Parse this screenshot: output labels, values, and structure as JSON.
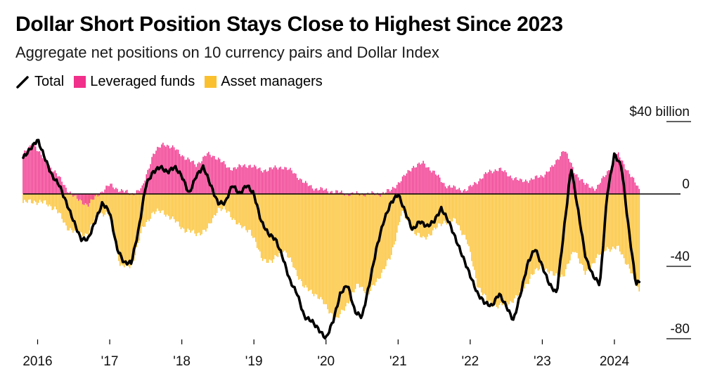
{
  "title": "Dollar Short Position Stays Close to Highest Since 2023",
  "subtitle": "Aggregate net positions on 10 currency pairs and Dollar Index",
  "legend": {
    "total": "Total",
    "leveraged": "Leveraged funds",
    "asset": "Asset managers"
  },
  "colors": {
    "total": "#000000",
    "leveraged": "#f0308a",
    "asset": "#fbc02d"
  },
  "chart_data": {
    "type": "bar",
    "title": "Dollar Short Position Stays Close to Highest Since 2023",
    "subtitle": "Aggregate net positions on 10 currency pairs and Dollar Index",
    "y_unit": "$ billion",
    "ylim": [
      -80,
      40
    ],
    "yticks": [
      {
        "value": 40,
        "label": "$40 billion"
      },
      {
        "value": 0,
        "label": "0"
      },
      {
        "value": -40,
        "label": "-40"
      },
      {
        "value": -80,
        "label": "-80"
      }
    ],
    "xlim": [
      2015.8,
      2024.4
    ],
    "xticks": [
      {
        "value": 2016,
        "label": "2016"
      },
      {
        "value": 2017,
        "label": "'17"
      },
      {
        "value": 2018,
        "label": "'18"
      },
      {
        "value": 2019,
        "label": "'19"
      },
      {
        "value": 2020,
        "label": "'20"
      },
      {
        "value": 2021,
        "label": "'21"
      },
      {
        "value": 2022,
        "label": "'22"
      },
      {
        "value": 2023,
        "label": "'23"
      },
      {
        "value": 2024,
        "label": "2024"
      }
    ],
    "series": [
      {
        "name": "Leveraged funds",
        "style": "stacked-bars",
        "x": [
          2015.8,
          2015.95,
          2016.1,
          2016.25,
          2016.4,
          2016.55,
          2016.7,
          2016.85,
          2017.0,
          2017.15,
          2017.3,
          2017.45,
          2017.6,
          2017.75,
          2017.9,
          2018.05,
          2018.2,
          2018.35,
          2018.5,
          2018.65,
          2018.8,
          2018.95,
          2019.1,
          2019.25,
          2019.4,
          2019.55,
          2019.7,
          2019.85,
          2020.0,
          2020.15,
          2020.3,
          2020.45,
          2020.6,
          2020.75,
          2020.9,
          2021.05,
          2021.2,
          2021.35,
          2021.5,
          2021.65,
          2021.8,
          2021.95,
          2022.1,
          2022.25,
          2022.4,
          2022.55,
          2022.7,
          2022.85,
          2023.0,
          2023.15,
          2023.3,
          2023.45,
          2023.6,
          2023.75,
          2023.9,
          2024.05,
          2024.2,
          2024.35
        ],
        "values": [
          22,
          28,
          18,
          12,
          3,
          -3,
          -6,
          0,
          5,
          2,
          0,
          3,
          22,
          28,
          25,
          20,
          16,
          22,
          20,
          14,
          15,
          16,
          13,
          14,
          15,
          12,
          6,
          3,
          2,
          1,
          0,
          0,
          0,
          0,
          2,
          8,
          15,
          17,
          12,
          5,
          3,
          2,
          7,
          12,
          14,
          10,
          7,
          8,
          10,
          15,
          25,
          12,
          5,
          3,
          12,
          22,
          12,
          2
        ]
      },
      {
        "name": "Asset managers",
        "style": "stacked-bars",
        "x": [
          2015.8,
          2015.95,
          2016.1,
          2016.25,
          2016.4,
          2016.55,
          2016.7,
          2016.85,
          2017.0,
          2017.15,
          2017.3,
          2017.45,
          2017.6,
          2017.75,
          2017.9,
          2018.05,
          2018.2,
          2018.35,
          2018.5,
          2018.65,
          2018.8,
          2018.95,
          2019.1,
          2019.25,
          2019.4,
          2019.55,
          2019.7,
          2019.85,
          2020.0,
          2020.15,
          2020.3,
          2020.45,
          2020.6,
          2020.75,
          2020.9,
          2021.05,
          2021.2,
          2021.35,
          2021.5,
          2021.65,
          2021.8,
          2021.95,
          2022.1,
          2022.25,
          2022.4,
          2022.55,
          2022.7,
          2022.85,
          2023.0,
          2023.15,
          2023.3,
          2023.45,
          2023.6,
          2023.75,
          2023.9,
          2024.05,
          2024.2,
          2024.35
        ],
        "values": [
          -5,
          -4,
          -5,
          -8,
          -18,
          -22,
          -22,
          -10,
          -12,
          -40,
          -40,
          -20,
          -10,
          -10,
          -15,
          -20,
          -22,
          -20,
          -8,
          -10,
          -18,
          -20,
          -35,
          -38,
          -30,
          -40,
          -52,
          -55,
          -62,
          -70,
          -60,
          -50,
          -55,
          -45,
          -35,
          -10,
          -20,
          -25,
          -20,
          -15,
          -15,
          -25,
          -50,
          -60,
          -62,
          -60,
          -55,
          -45,
          -40,
          -45,
          -45,
          -30,
          -45,
          -35,
          -30,
          -30,
          -40,
          -55
        ]
      },
      {
        "name": "Total",
        "style": "line",
        "x": [
          2015.8,
          2015.9,
          2016.0,
          2016.1,
          2016.2,
          2016.3,
          2016.4,
          2016.5,
          2016.6,
          2016.7,
          2016.8,
          2016.9,
          2017.0,
          2017.1,
          2017.2,
          2017.3,
          2017.4,
          2017.5,
          2017.6,
          2017.7,
          2017.8,
          2017.9,
          2018.0,
          2018.1,
          2018.2,
          2018.3,
          2018.4,
          2018.5,
          2018.6,
          2018.7,
          2018.8,
          2018.9,
          2019.0,
          2019.1,
          2019.2,
          2019.3,
          2019.4,
          2019.5,
          2019.6,
          2019.7,
          2019.8,
          2019.9,
          2020.0,
          2020.1,
          2020.2,
          2020.3,
          2020.4,
          2020.5,
          2020.6,
          2020.7,
          2020.8,
          2020.9,
          2021.0,
          2021.1,
          2021.2,
          2021.3,
          2021.4,
          2021.5,
          2021.6,
          2021.7,
          2021.8,
          2021.9,
          2022.0,
          2022.1,
          2022.2,
          2022.3,
          2022.4,
          2022.5,
          2022.6,
          2022.7,
          2022.8,
          2022.9,
          2023.0,
          2023.1,
          2023.2,
          2023.3,
          2023.4,
          2023.5,
          2023.6,
          2023.7,
          2023.8,
          2023.9,
          2024.0,
          2024.1,
          2024.2,
          2024.3,
          2024.35
        ],
        "values": [
          20,
          25,
          30,
          20,
          10,
          5,
          -5,
          -15,
          -25,
          -25,
          -15,
          -5,
          -10,
          -30,
          -38,
          -38,
          -20,
          5,
          12,
          15,
          12,
          15,
          10,
          0,
          10,
          15,
          5,
          -5,
          -5,
          5,
          0,
          5,
          0,
          -15,
          -22,
          -25,
          -35,
          -48,
          -55,
          -68,
          -70,
          -75,
          -80,
          -70,
          -55,
          -50,
          -65,
          -68,
          -50,
          -30,
          -15,
          -5,
          0,
          -10,
          -20,
          -15,
          -18,
          -15,
          -8,
          -15,
          -25,
          -35,
          -45,
          -55,
          -60,
          -62,
          -55,
          -62,
          -70,
          -55,
          -38,
          -30,
          -40,
          -50,
          -55,
          -20,
          15,
          -10,
          -35,
          -45,
          -50,
          0,
          22,
          15,
          -20,
          -50,
          -48
        ]
      }
    ],
    "grid": false,
    "legend_position": "top-left"
  }
}
